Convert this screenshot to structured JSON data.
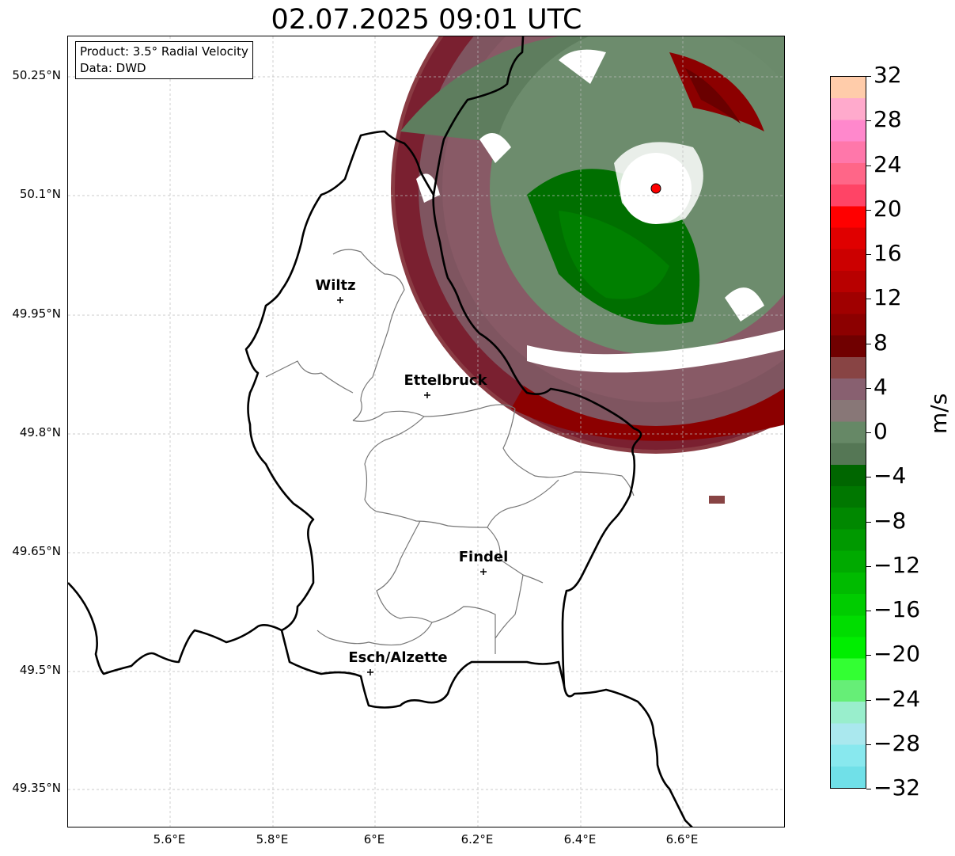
{
  "title": "02.07.2025 09:01 UTC",
  "info": {
    "product": "Product: 3.5° Radial Velocity",
    "source": "Data: DWD"
  },
  "axes": {
    "lat_ticks": [
      "50.25°N",
      "50.1°N",
      "49.95°N",
      "49.8°N",
      "49.65°N",
      "49.5°N",
      "49.35°N"
    ],
    "lon_ticks": [
      "5.6°E",
      "5.8°E",
      "6°E",
      "6.2°E",
      "6.4°E",
      "6.6°E"
    ]
  },
  "cities": [
    {
      "name": "Wiltz"
    },
    {
      "name": "Ettelbruck"
    },
    {
      "name": "Findel"
    },
    {
      "name": "Esch/Alzette"
    }
  ],
  "colorbar": {
    "label": "m/s",
    "ticks": [
      "32",
      "28",
      "24",
      "20",
      "16",
      "12",
      "8",
      "4",
      "0",
      "−4",
      "−8",
      "−12",
      "−16",
      "−20",
      "−24",
      "−28",
      "−32"
    ],
    "colors": [
      "#ffccaa",
      "#ffaacc",
      "#ff88cc",
      "#ff77aa",
      "#ff6688",
      "#ff4466",
      "#ff0000",
      "#e00000",
      "#cc0000",
      "#b80000",
      "#a00000",
      "#8c0000",
      "#700000",
      "#884444",
      "#886070",
      "#887777",
      "#668866",
      "#557755",
      "#006600",
      "#007700",
      "#008800",
      "#009900",
      "#00aa00",
      "#00bb00",
      "#00cc00",
      "#00dd00",
      "#00ee00",
      "#33ff33",
      "#66ee77",
      "#99eecc",
      "#aae8ee",
      "#88e8ee",
      "#70e0e8"
    ]
  },
  "radar_site": {
    "marker": "red-circle"
  }
}
